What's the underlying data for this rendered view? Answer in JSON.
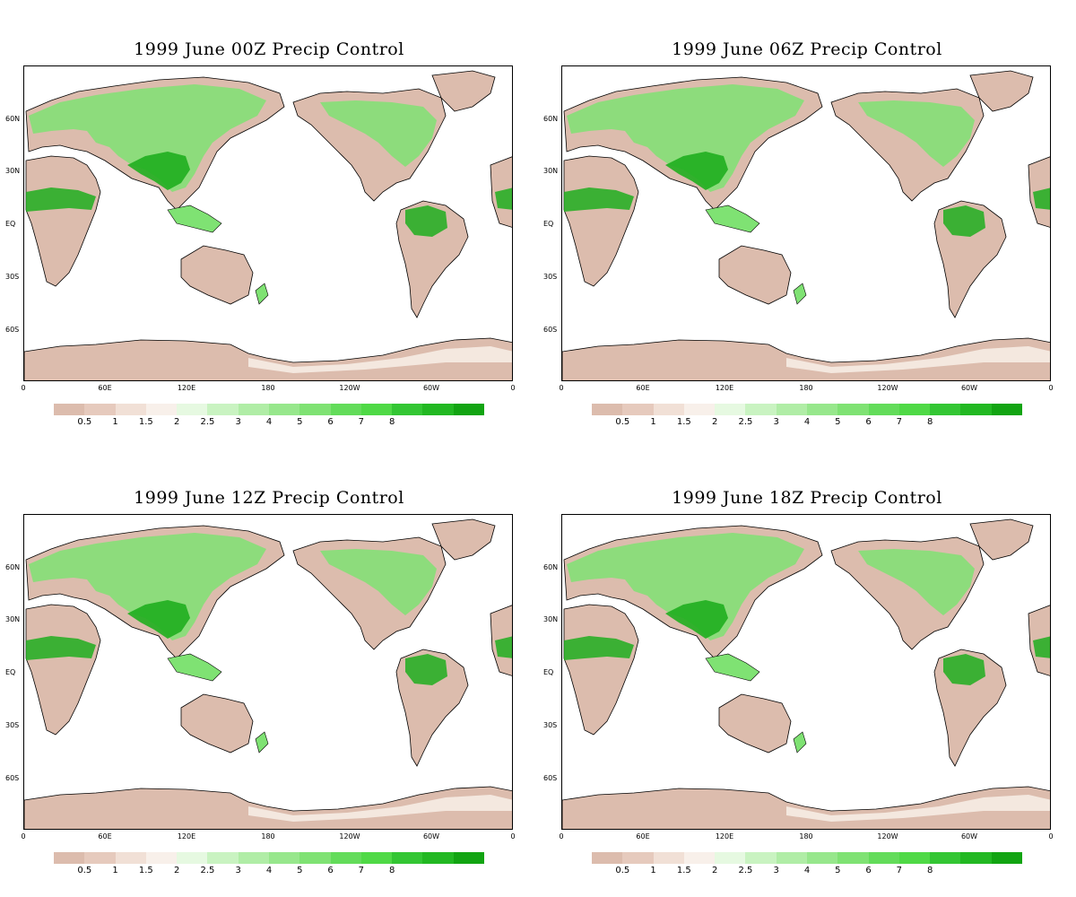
{
  "colors": {
    "dry": "#dcbcad",
    "dry2": "#e9d4c8",
    "pale": "#f6ece4",
    "light_green": "#c9f5c0",
    "mid_green": "#7fe273",
    "green": "#4fd946",
    "dark_green": "#1fae1f",
    "ocean": "#ffffff"
  },
  "colorbar": {
    "colors": [
      "#dcbcad",
      "#e6cabd",
      "#f1e0d6",
      "#f8f0ea",
      "#e6f9e1",
      "#c9f3c1",
      "#b0eda6",
      "#97e78c",
      "#7fe273",
      "#63dc5a",
      "#4fd946",
      "#33c633",
      "#22b822",
      "#12a412"
    ],
    "labels": [
      "0.5",
      "1",
      "1.5",
      "2",
      "2.5",
      "3",
      "4",
      "5",
      "6",
      "7",
      "8"
    ]
  },
  "axes": {
    "lat_labels": [
      "60N",
      "30N",
      "EQ",
      "30S",
      "60S"
    ],
    "lon_labels": [
      "0",
      "60E",
      "120E",
      "180",
      "120W",
      "60W",
      "0"
    ]
  },
  "panels": [
    {
      "title": "1999 June  00Z Precip Control"
    },
    {
      "title": "1999  June 06Z Precip Control"
    },
    {
      "title": "1999  June 12Z Precip Control"
    },
    {
      "title": "1999  June 18Z Precip Control"
    }
  ]
}
